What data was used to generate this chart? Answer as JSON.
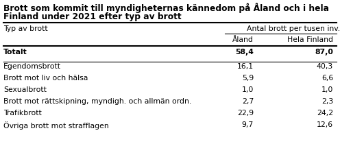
{
  "title_line1": "Brott som kommit till myndigheternas kännedom på Åland och i hela",
  "title_line2": "Finland under 2021 efter typ av brott",
  "col_header_group": "Antal brott per tusen inv.",
  "col_header1": "Åland",
  "col_header2": "Hela Finland",
  "col_label": "Typ av brott",
  "rows": [
    {
      "label": "Totalt",
      "aland": "58,4",
      "finland": "87,0",
      "bold": true
    },
    {
      "label": "Egendomsbrott",
      "aland": "16,1",
      "finland": "40,3",
      "bold": false
    },
    {
      "label": "Brott mot liv och hälsa",
      "aland": "5,9",
      "finland": "6,6",
      "bold": false
    },
    {
      "label": "Sexualbrott",
      "aland": "1,0",
      "finland": "1,0",
      "bold": false
    },
    {
      "label": "Brott mot rättskipning, myndigh. och allmän ordn.",
      "aland": "2,7",
      "finland": "2,3",
      "bold": false
    },
    {
      "label": "Trafikbrott",
      "aland": "22,9",
      "finland": "24,2",
      "bold": false
    },
    {
      "label": "Övriga brott mot strafflagen",
      "aland": "9,7",
      "finland": "12,6",
      "bold": false
    }
  ],
  "bg_color": "#ffffff",
  "text_color": "#000000",
  "line_color": "#000000",
  "title_fontsize": 8.8,
  "header_fontsize": 7.8,
  "cell_fontsize": 7.8
}
